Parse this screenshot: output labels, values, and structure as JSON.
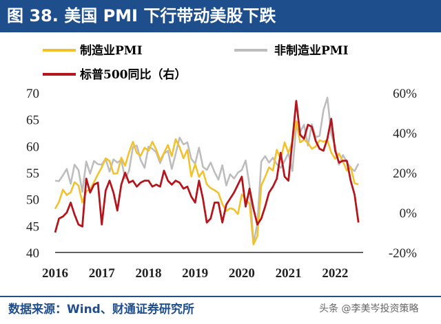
{
  "title": "图 38. 美国 PMI 下行带动美股下跌",
  "source": "数据来源：Wind、财通证券研究所",
  "watermark": "头条 @李美岑投资策略",
  "colors": {
    "header": "#1F4E8C",
    "mfg": "#F2C12E",
    "nonmfg": "#BDBDBD",
    "sp500": "#B4161D"
  },
  "chart_data": {
    "type": "line",
    "legend": [
      "制造业PMI",
      "非制造业PMI",
      "标普500同比（右）"
    ],
    "x_ticks": [
      "2016",
      "2017",
      "2018",
      "2019",
      "2020",
      "2021",
      "2022"
    ],
    "x_range": [
      2016.0,
      2022.6
    ],
    "y_left": {
      "range": [
        40,
        70
      ],
      "ticks": [
        "40",
        "45",
        "50",
        "55",
        "60",
        "65",
        "70"
      ]
    },
    "y_right": {
      "range": [
        -20,
        60
      ],
      "ticks": [
        "-20%",
        "0%",
        "20%",
        "40%",
        "60%"
      ]
    },
    "series": [
      {
        "name": "制造业PMI",
        "axis": "left",
        "x": [
          2016.0,
          2016.083,
          2016.167,
          2016.25,
          2016.333,
          2016.417,
          2016.5,
          2016.583,
          2016.667,
          2016.75,
          2016.833,
          2016.917,
          2017.0,
          2017.083,
          2017.167,
          2017.25,
          2017.333,
          2017.417,
          2017.5,
          2017.583,
          2017.667,
          2017.75,
          2017.833,
          2017.917,
          2018.0,
          2018.083,
          2018.167,
          2018.25,
          2018.333,
          2018.417,
          2018.5,
          2018.583,
          2018.667,
          2018.75,
          2018.833,
          2018.917,
          2019.0,
          2019.083,
          2019.167,
          2019.25,
          2019.333,
          2019.417,
          2019.5,
          2019.583,
          2019.667,
          2019.75,
          2019.833,
          2019.917,
          2020.0,
          2020.083,
          2020.167,
          2020.25,
          2020.333,
          2020.417,
          2020.5,
          2020.583,
          2020.667,
          2020.75,
          2020.833,
          2020.917,
          2021.0,
          2021.083,
          2021.167,
          2021.25,
          2021.333,
          2021.417,
          2021.5,
          2021.583,
          2021.667,
          2021.75,
          2021.833,
          2021.917,
          2022.0,
          2022.083,
          2022.167,
          2022.25,
          2022.333,
          2022.417,
          2022.5
        ],
        "y": [
          48.2,
          49.5,
          51.8,
          50.8,
          51.3,
          53.2,
          52.6,
          49.4,
          51.5,
          51.9,
          53.2,
          54.7,
          56.0,
          57.7,
          57.2,
          54.8,
          54.9,
          57.8,
          56.3,
          58.8,
          60.8,
          58.7,
          58.2,
          59.7,
          59.1,
          60.8,
          59.3,
          57.3,
          58.7,
          60.2,
          58.1,
          61.3,
          59.8,
          57.7,
          59.3,
          54.3,
          56.6,
          54.2,
          55.3,
          52.8,
          52.1,
          51.7,
          51.2,
          49.1,
          47.8,
          48.3,
          48.1,
          47.2,
          50.9,
          50.1,
          49.1,
          41.5,
          43.1,
          52.6,
          54.2,
          56.0,
          55.4,
          59.3,
          57.5,
          60.7,
          58.7,
          60.8,
          64.7,
          60.7,
          61.2,
          60.6,
          59.5,
          59.9,
          61.1,
          60.8,
          61.1,
          58.8,
          57.6,
          58.6,
          57.1,
          55.4,
          56.1,
          53.0,
          52.8
        ]
      },
      {
        "name": "非制造业PMI",
        "axis": "left",
        "x": [
          2016.0,
          2016.083,
          2016.167,
          2016.25,
          2016.333,
          2016.417,
          2016.5,
          2016.583,
          2016.667,
          2016.75,
          2016.833,
          2016.917,
          2017.0,
          2017.083,
          2017.167,
          2017.25,
          2017.333,
          2017.417,
          2017.5,
          2017.583,
          2017.667,
          2017.75,
          2017.833,
          2017.917,
          2018.0,
          2018.083,
          2018.167,
          2018.25,
          2018.333,
          2018.417,
          2018.5,
          2018.583,
          2018.667,
          2018.75,
          2018.833,
          2018.917,
          2019.0,
          2019.083,
          2019.167,
          2019.25,
          2019.333,
          2019.417,
          2019.5,
          2019.583,
          2019.667,
          2019.75,
          2019.833,
          2019.917,
          2020.0,
          2020.083,
          2020.167,
          2020.25,
          2020.333,
          2020.417,
          2020.5,
          2020.583,
          2020.667,
          2020.75,
          2020.833,
          2020.917,
          2021.0,
          2021.083,
          2021.167,
          2021.25,
          2021.333,
          2021.417,
          2021.5,
          2021.583,
          2021.667,
          2021.75,
          2021.833,
          2021.917,
          2022.0,
          2022.083,
          2022.167,
          2022.25,
          2022.333,
          2022.417,
          2022.5
        ],
        "y": [
          53.5,
          53.4,
          54.5,
          55.7,
          52.9,
          56.5,
          55.5,
          51.4,
          57.1,
          54.8,
          57.2,
          56.6,
          56.5,
          57.6,
          55.2,
          57.5,
          56.9,
          57.4,
          53.9,
          55.3,
          59.8,
          60.1,
          57.4,
          55.9,
          59.9,
          59.5,
          58.8,
          56.8,
          58.6,
          59.1,
          55.7,
          58.5,
          61.6,
          60.3,
          60.7,
          57.6,
          56.7,
          59.7,
          56.1,
          55.5,
          56.9,
          55.1,
          53.7,
          56.4,
          52.6,
          54.7,
          53.9,
          55.0,
          55.5,
          57.3,
          52.5,
          41.8,
          45.4,
          57.1,
          58.1,
          56.9,
          57.8,
          56.6,
          55.9,
          57.2,
          58.7,
          55.3,
          63.7,
          62.7,
          64.0,
          60.1,
          64.1,
          61.7,
          61.9,
          66.7,
          69.1,
          62.3,
          59.9,
          56.5,
          58.3,
          57.1,
          55.9,
          55.3,
          56.7
        ]
      },
      {
        "name": "标普500同比（右）",
        "axis": "right",
        "x": [
          2016.0,
          2016.083,
          2016.167,
          2016.25,
          2016.333,
          2016.417,
          2016.5,
          2016.583,
          2016.667,
          2016.75,
          2016.833,
          2016.917,
          2017.0,
          2017.083,
          2017.167,
          2017.25,
          2017.333,
          2017.417,
          2017.5,
          2017.583,
          2017.667,
          2017.75,
          2017.833,
          2017.917,
          2018.0,
          2018.083,
          2018.167,
          2018.25,
          2018.333,
          2018.417,
          2018.5,
          2018.583,
          2018.667,
          2018.75,
          2018.833,
          2018.917,
          2019.0,
          2019.083,
          2019.167,
          2019.25,
          2019.333,
          2019.417,
          2019.5,
          2019.583,
          2019.667,
          2019.75,
          2019.833,
          2019.917,
          2020.0,
          2020.083,
          2020.167,
          2020.25,
          2020.333,
          2020.417,
          2020.5,
          2020.583,
          2020.667,
          2020.75,
          2020.833,
          2020.917,
          2021.0,
          2021.083,
          2021.167,
          2021.25,
          2021.333,
          2021.417,
          2021.5,
          2021.583,
          2021.667,
          2021.75,
          2021.833,
          2021.917,
          2022.0,
          2022.083,
          2022.167,
          2022.25,
          2022.333,
          2022.417,
          2022.5
        ],
        "y": [
          -10,
          -3,
          -2,
          0,
          5,
          -1,
          -6,
          -7,
          17,
          10,
          14,
          15,
          -6,
          11,
          16,
          10,
          1,
          14,
          20,
          15,
          16,
          13,
          15,
          16,
          16,
          13,
          14,
          13,
          21,
          16,
          14,
          16,
          15,
          12,
          13,
          8,
          5,
          16,
          7,
          -5,
          -3,
          5,
          5,
          -5,
          4,
          7,
          10,
          14,
          18,
          3,
          12,
          2,
          -6,
          -3,
          3,
          10,
          13,
          17,
          30,
          18,
          16,
          36,
          56,
          39,
          37,
          44,
          43,
          36,
          32,
          31,
          37,
          47,
          31,
          25,
          26,
          26,
          16,
          9,
          -5
        ]
      }
    ]
  }
}
